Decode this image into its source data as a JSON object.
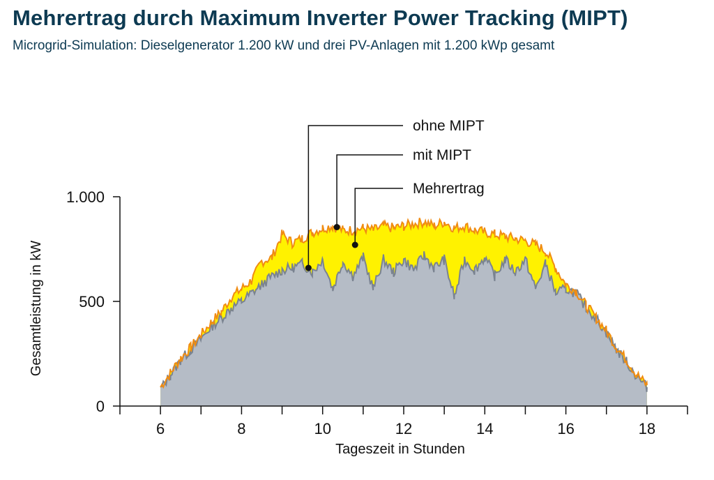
{
  "title": "Mehrertrag durch Maximum Inverter Power Tracking (MIPT)",
  "subtitle": "Microgrid-Simulation: Dieselgenerator 1.200 kW und drei PV-Anlagen mit 1.200 kWp gesamt",
  "colors": {
    "ohne_fill": "#b5bcc6",
    "ohne_line": "#7a8390",
    "mit_line": "#f08c12",
    "mehrertrag_fill": "#fff200",
    "axis": "#111111"
  },
  "chart_data": {
    "type": "area",
    "title": "Mehrertrag durch Maximum Inverter Power Tracking (MIPT)",
    "xlabel": "Tageszeit in Stunden",
    "ylabel": "Gesamtleistung in kW",
    "xlim": [
      5,
      19
    ],
    "ylim": [
      0,
      1000
    ],
    "x_ticks": [
      6,
      8,
      10,
      12,
      14,
      16,
      18
    ],
    "x_minor_ticks": [
      5,
      7,
      9,
      11,
      13,
      15,
      17,
      19
    ],
    "y_ticks": [
      {
        "value": 0,
        "label": "0"
      },
      {
        "value": 500,
        "label": "500"
      },
      {
        "value": 1000,
        "label": "1.000"
      }
    ],
    "series": [
      {
        "name": "ohne MIPT",
        "x": [
          6.0,
          6.25,
          6.5,
          6.75,
          7.0,
          7.25,
          7.5,
          7.75,
          8.0,
          8.25,
          8.5,
          8.75,
          9.0,
          9.25,
          9.5,
          9.75,
          10.0,
          10.25,
          10.5,
          10.75,
          11.0,
          11.25,
          11.5,
          11.75,
          12.0,
          12.25,
          12.5,
          12.75,
          13.0,
          13.25,
          13.5,
          13.75,
          14.0,
          14.25,
          14.5,
          14.75,
          15.0,
          15.25,
          15.5,
          15.75,
          16.0,
          16.25,
          16.5,
          16.75,
          17.0,
          17.25,
          17.5,
          17.75,
          18.0
        ],
        "values": [
          80,
          150,
          220,
          270,
          320,
          380,
          420,
          470,
          500,
          540,
          580,
          620,
          650,
          660,
          680,
          640,
          700,
          560,
          690,
          620,
          710,
          560,
          700,
          640,
          700,
          650,
          720,
          660,
          700,
          520,
          700,
          650,
          710,
          620,
          700,
          640,
          700,
          560,
          680,
          540,
          560,
          540,
          470,
          420,
          350,
          270,
          210,
          140,
          90
        ]
      },
      {
        "name": "mit MIPT",
        "x": [
          6.0,
          6.25,
          6.5,
          6.75,
          7.0,
          7.25,
          7.5,
          7.75,
          8.0,
          8.25,
          8.5,
          8.75,
          9.0,
          9.25,
          9.5,
          9.75,
          10.0,
          10.25,
          10.5,
          10.75,
          11.0,
          11.25,
          11.5,
          11.75,
          12.0,
          12.25,
          12.5,
          12.75,
          13.0,
          13.25,
          13.5,
          13.75,
          14.0,
          14.25,
          14.5,
          14.75,
          15.0,
          15.25,
          15.5,
          15.75,
          16.0,
          16.25,
          16.5,
          16.75,
          17.0,
          17.25,
          17.5,
          17.75,
          18.0
        ],
        "values": [
          90,
          160,
          230,
          280,
          340,
          400,
          450,
          520,
          560,
          600,
          690,
          710,
          820,
          780,
          800,
          830,
          850,
          860,
          840,
          840,
          850,
          840,
          860,
          850,
          860,
          870,
          880,
          860,
          880,
          850,
          860,
          840,
          830,
          820,
          810,
          800,
          790,
          770,
          740,
          660,
          580,
          550,
          480,
          420,
          360,
          280,
          220,
          150,
          100
        ]
      }
    ],
    "annotations": [
      {
        "label": "ohne MIPT",
        "x": 9.65,
        "y": 660
      },
      {
        "label": "mit MIPT",
        "x": 10.35,
        "y": 855
      },
      {
        "label": "Mehrertrag",
        "x": 10.8,
        "y": 770
      }
    ]
  }
}
